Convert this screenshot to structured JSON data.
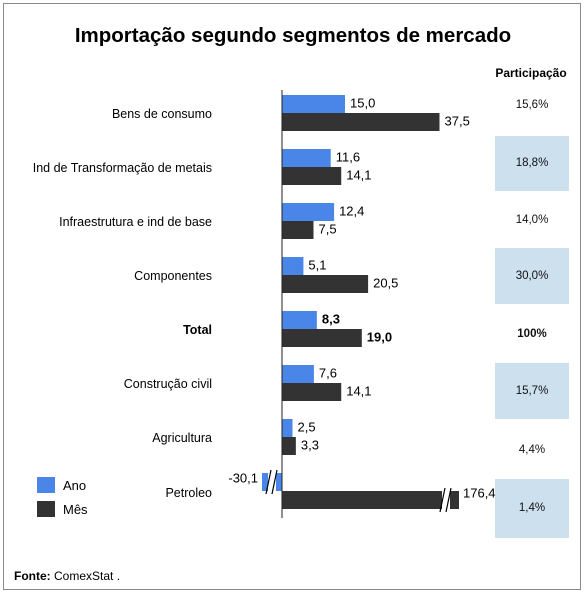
{
  "title": "Importação segundo segmentos de mercado",
  "participation_header": "Participação",
  "source_label": "Fonte:",
  "source_text": "ComexStat .",
  "legend": {
    "ano": "Ano",
    "mes": "Mês"
  },
  "colors": {
    "ano": "#4a86e8",
    "mes": "#333333",
    "highlight": "#cce0ee"
  },
  "rows": [
    {
      "label": "Bens de consumo",
      "participation": "15,6%",
      "highlight": false,
      "bold": false
    },
    {
      "label": "Ind de Transformação de metais",
      "participation": "18,8%",
      "highlight": true,
      "bold": false
    },
    {
      "label": "Infraestrutura e ind de base",
      "participation": "14,0%",
      "highlight": false,
      "bold": false
    },
    {
      "label": "Componentes",
      "participation": "30,0%",
      "highlight": true,
      "bold": false
    },
    {
      "label": "Total",
      "participation": "100%",
      "highlight": false,
      "bold": true
    },
    {
      "label": "Construção civil",
      "participation": "15,7%",
      "highlight": true,
      "bold": false
    },
    {
      "label": "Agricultura",
      "participation": "4,4%",
      "highlight": false,
      "bold": false
    },
    {
      "label": "Petroleo",
      "participation": "1,4%",
      "highlight": true,
      "bold": false
    }
  ],
  "chart_data": {
    "type": "bar",
    "orientation": "horizontal",
    "categories": [
      "Bens de consumo",
      "Ind de Transformação de metais",
      "Infraestrutura e ind de base",
      "Componentes",
      "Total",
      "Construção civil",
      "Agricultura",
      "Petroleo"
    ],
    "series": [
      {
        "name": "Ano",
        "values": [
          15.0,
          11.6,
          12.4,
          5.1,
          8.3,
          7.6,
          2.5,
          -30.1
        ],
        "labels": [
          "15,0",
          "11,6",
          "12,4",
          "5,1",
          "8,3",
          "7,6",
          "2,5",
          "-30,1"
        ]
      },
      {
        "name": "Mês",
        "values": [
          37.5,
          14.1,
          7.5,
          20.5,
          19.0,
          14.1,
          3.3,
          176.4
        ],
        "labels": [
          "37,5",
          "14,1",
          "7,5",
          "20,5",
          "19,0",
          "14,1",
          "3,3",
          "176,4"
        ]
      }
    ],
    "broken_axis_values": [
      -30.1,
      176.4
    ],
    "legend_position": "bottom-left",
    "grid": false
  }
}
